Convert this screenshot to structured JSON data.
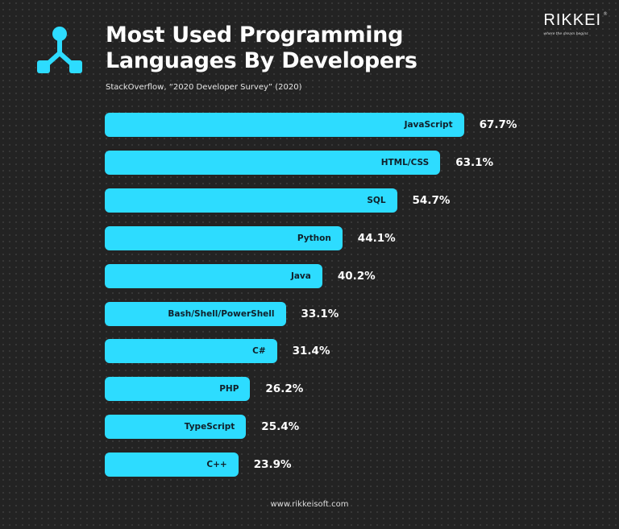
{
  "header": {
    "title_line1": "Most Used Programming",
    "title_line2": "Languages By Developers",
    "source": "StackOverflow, “2020 Developer Survey” (2020)"
  },
  "brand": {
    "name": "RIKKEI",
    "tagline": "where the dream begins",
    "registered": "®"
  },
  "footer": {
    "url": "www.rikkeisoft.com"
  },
  "colors": {
    "bar": "#2ddcff",
    "background": "#232323"
  },
  "chart_data": {
    "type": "bar",
    "orientation": "horizontal",
    "categories": [
      "JavaScript",
      "HTML/CSS",
      "SQL",
      "Python",
      "Java",
      "Bash/Shell/PowerShell",
      "C#",
      "PHP",
      "TypeScript",
      "C++"
    ],
    "values": [
      67.7,
      63.1,
      54.7,
      44.1,
      40.2,
      33.1,
      31.4,
      26.2,
      25.4,
      23.9
    ],
    "value_labels": [
      "67.7%",
      "63.1%",
      "54.7%",
      "44.1%",
      "40.2%",
      "33.1%",
      "31.4%",
      "26.2%",
      "25.4%",
      "23.9%"
    ],
    "unit": "%",
    "grid": false
  }
}
